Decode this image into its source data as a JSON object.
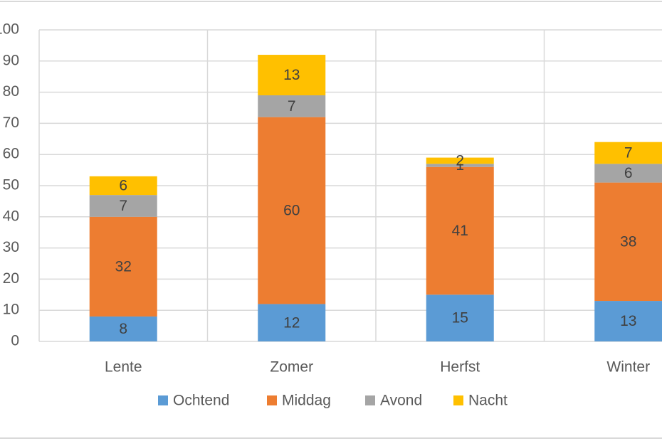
{
  "chart_data": {
    "type": "stacked-bar",
    "categories": [
      "Lente",
      "Zomer",
      "Herfst",
      "Winter"
    ],
    "series": [
      {
        "name": "Ochtend",
        "color": "#5b9bd5",
        "values": [
          8,
          12,
          15,
          13
        ]
      },
      {
        "name": "Middag",
        "color": "#ed7d31",
        "values": [
          32,
          60,
          41,
          38
        ]
      },
      {
        "name": "Avond",
        "color": "#a5a5a5",
        "values": [
          7,
          7,
          1,
          6
        ]
      },
      {
        "name": "Nacht",
        "color": "#ffc000",
        "values": [
          6,
          13,
          2,
          7
        ]
      }
    ],
    "ylim": [
      0,
      100
    ],
    "yticks": [
      0,
      10,
      20,
      30,
      40,
      50,
      60,
      70,
      80,
      90,
      100
    ],
    "grid": true,
    "legend": "bottom"
  }
}
